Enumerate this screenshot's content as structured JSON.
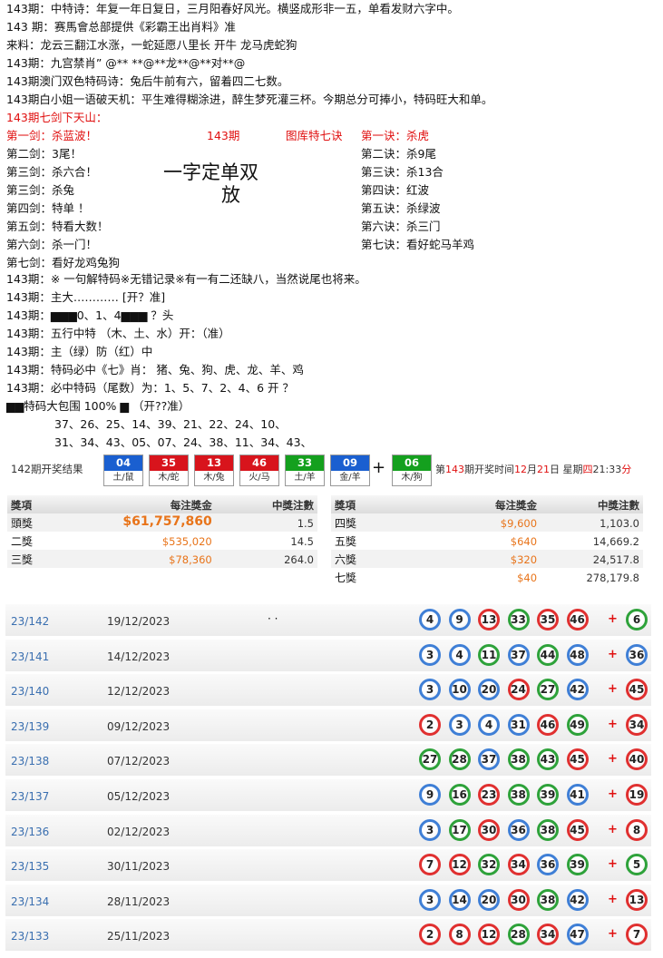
{
  "intro_lines": [
    "143期：中特诗：年复一年日复日，三月阳春好风光。横竖成形非一五，单看发财六字中。",
    "143 期：赛馬會总部提供《彩霸王出肖料》准",
    "来料：龙云三翻江水涨，一蛇延愿八里长 开牛 龙马虎蛇狗",
    "143期：九宫禁肖” @** **@**龙**@**对**@",
    "143期澳门双色特码诗：兔后牛前有六，留着四二七数。",
    "143期白小姐一语破天机：平生难得糊涂进，醉生梦死灌三杯。今期总分可捧小，特码旺大和单。",
    "143期七剑下天山："
  ],
  "swords": {
    "left": [
      "第一剑：杀蓝波！",
      "第二剑：3尾！",
      "第三剑：杀六合！",
      "第三剑：杀兔",
      "第四剑：特单 ！",
      "第五剑：特看大数！",
      "第六剑：杀一门！",
      "第七剑：看好龙鸡兔狗"
    ],
    "center_issue": "143期",
    "center_title": "图库特七诀",
    "center_big": [
      "一字定单双",
      "放"
    ],
    "right": [
      "第一诀：杀虎",
      "第二诀：杀9尾",
      "第三诀：杀13合",
      "第四诀：红波",
      "第五诀：杀绿波",
      "第六诀：杀三门",
      "第七诀：看好蛇马羊鸡"
    ]
  },
  "lines": [
    "143期：※ 一句解特码※无错记录※有一有二还缺八，当然说尾也将来。",
    "143期：主大………… [开？准]",
    "143期：▆▆▆0、1、4▆▆▆ ？头",
    "143期：五行中特 （木、土、水）开：（准）",
    "143期：主（绿）防（红）中",
    "143期：特码必中《七》肖： 猪、兔、狗、虎、龙、羊、鸡",
    "143期：必中特码（尾数）为：1、5、7、2、4、6 开 ？",
    "▆▆特码大包围 100% ▆ （开??准）",
    "37、26、25、14、39、21、22、24、10、",
    "31、34、43、05、07、24、38、11、34、43、"
  ],
  "draw": {
    "title": "142期开奖结果",
    "balls": [
      {
        "number": "04",
        "zodiac": "土/鼠",
        "color": "#1a5fd0"
      },
      {
        "number": "35",
        "zodiac": "木/蛇",
        "color": "#d8141c"
      },
      {
        "number": "13",
        "zodiac": "木/兔",
        "color": "#d8141c"
      },
      {
        "number": "46",
        "zodiac": "火/马",
        "color": "#d8141c"
      },
      {
        "number": "33",
        "zodiac": "土/羊",
        "color": "#14a01e"
      },
      {
        "number": "09",
        "zodiac": "金/羊",
        "color": "#1a5fd0"
      }
    ],
    "plus": "+",
    "special": {
      "number": "06",
      "zodiac": "木/狗",
      "color": "#14a01e"
    },
    "next_draw": [
      "第",
      "143",
      "期开奖时间",
      "12",
      "月",
      "21",
      "日 星期",
      "四",
      "21:33",
      "分"
    ]
  },
  "prizes": {
    "headers": [
      "獎項",
      "每注獎金",
      "中獎注數"
    ],
    "left": [
      [
        "頭獎",
        "$61,757,860",
        "1.5"
      ],
      [
        "二獎",
        "$535,020",
        "14.5"
      ],
      [
        "三獎",
        "$78,360",
        "264.0"
      ]
    ],
    "right": [
      [
        "四獎",
        "$9,600",
        "1,103.0"
      ],
      [
        "五獎",
        "$640",
        "14,669.2"
      ],
      [
        "六獎",
        "$320",
        "24,517.8"
      ],
      [
        "七獎",
        "$40",
        "278,179.8"
      ]
    ]
  },
  "history_plus": "+",
  "history": [
    {
      "issue": "23/142",
      "date": "19/12/2023",
      "note": "· ·",
      "numbers": [
        "4",
        "9",
        "13",
        "33",
        "35",
        "46"
      ],
      "colors": [
        "blue",
        "blue",
        "red",
        "green",
        "red",
        "red"
      ],
      "special": "6",
      "special_color": "green"
    },
    {
      "issue": "23/141",
      "date": "14/12/2023",
      "numbers": [
        "3",
        "4",
        "11",
        "37",
        "44",
        "48"
      ],
      "colors": [
        "blue",
        "blue",
        "green",
        "blue",
        "green",
        "blue"
      ],
      "special": "36",
      "special_color": "blue"
    },
    {
      "issue": "23/140",
      "date": "12/12/2023",
      "numbers": [
        "3",
        "10",
        "20",
        "24",
        "27",
        "42"
      ],
      "colors": [
        "blue",
        "blue",
        "blue",
        "red",
        "green",
        "blue"
      ],
      "special": "45",
      "special_color": "red"
    },
    {
      "issue": "23/139",
      "date": "09/12/2023",
      "numbers": [
        "2",
        "3",
        "4",
        "31",
        "46",
        "49"
      ],
      "colors": [
        "red",
        "blue",
        "blue",
        "blue",
        "red",
        "green"
      ],
      "special": "34",
      "special_color": "red"
    },
    {
      "issue": "23/138",
      "date": "07/12/2023",
      "numbers": [
        "27",
        "28",
        "37",
        "38",
        "43",
        "45"
      ],
      "colors": [
        "green",
        "green",
        "blue",
        "green",
        "green",
        "red"
      ],
      "special": "40",
      "special_color": "red"
    },
    {
      "issue": "23/137",
      "date": "05/12/2023",
      "numbers": [
        "9",
        "16",
        "23",
        "38",
        "39",
        "41"
      ],
      "colors": [
        "blue",
        "green",
        "red",
        "green",
        "green",
        "blue"
      ],
      "special": "19",
      "special_color": "red"
    },
    {
      "issue": "23/136",
      "date": "02/12/2023",
      "numbers": [
        "3",
        "17",
        "30",
        "36",
        "38",
        "45"
      ],
      "colors": [
        "blue",
        "green",
        "red",
        "blue",
        "green",
        "red"
      ],
      "special": "8",
      "special_color": "red"
    },
    {
      "issue": "23/135",
      "date": "30/11/2023",
      "numbers": [
        "7",
        "12",
        "32",
        "34",
        "36",
        "39"
      ],
      "colors": [
        "red",
        "red",
        "green",
        "red",
        "blue",
        "green"
      ],
      "special": "5",
      "special_color": "green"
    },
    {
      "issue": "23/134",
      "date": "28/11/2023",
      "numbers": [
        "3",
        "14",
        "20",
        "30",
        "38",
        "42"
      ],
      "colors": [
        "blue",
        "blue",
        "blue",
        "red",
        "green",
        "blue"
      ],
      "special": "13",
      "special_color": "red"
    },
    {
      "issue": "23/133",
      "date": "25/11/2023",
      "numbers": [
        "2",
        "8",
        "12",
        "28",
        "34",
        "47"
      ],
      "colors": [
        "red",
        "red",
        "red",
        "green",
        "red",
        "blue"
      ],
      "special": "7",
      "special_color": "red"
    }
  ]
}
